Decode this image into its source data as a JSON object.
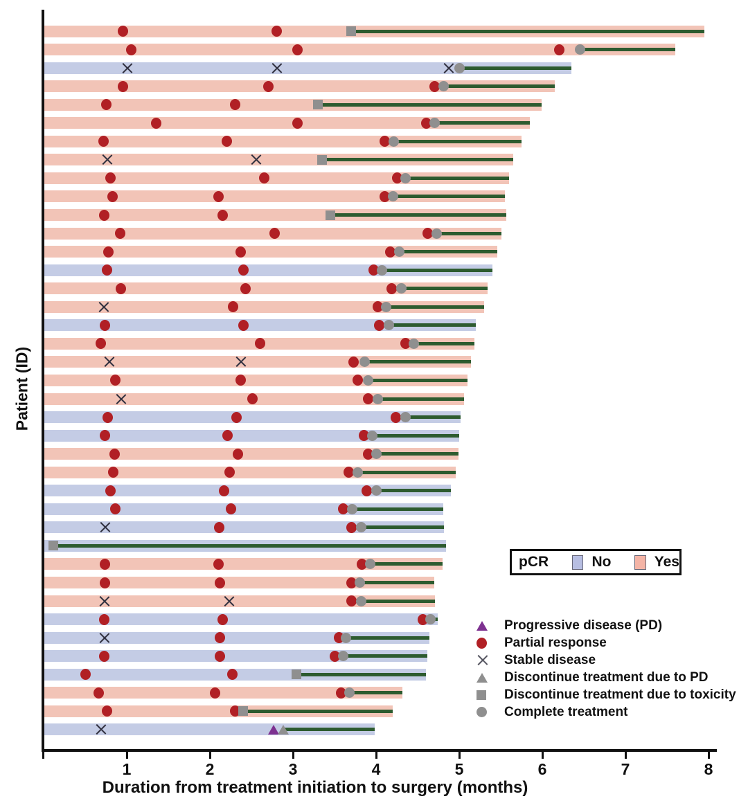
{
  "chart_data": {
    "type": "swimmer",
    "title": "",
    "xlabel": "Duration from treatment initiation to surgery (months)",
    "ylabel": "Patient (ID)",
    "xlim": [
      0,
      8.1
    ],
    "x_ticks": [
      "1",
      "2",
      "3",
      "4",
      "5",
      "6",
      "7",
      "8"
    ],
    "grid": false,
    "pcr_legend": {
      "title": "pCR",
      "no_label": "No",
      "yes_label": "Yes"
    },
    "marker_legend": [
      {
        "type": "pd",
        "label": "Progressive disease (PD)"
      },
      {
        "type": "pr",
        "label": "Partial response"
      },
      {
        "type": "sd",
        "label": "Stable disease"
      },
      {
        "type": "dpd",
        "label": "Discontinue treatment due to PD"
      },
      {
        "type": "tox",
        "label": "Discontinue treatment due to toxicity"
      },
      {
        "type": "comp",
        "label": "Complete treatment"
      }
    ],
    "colors": {
      "pcr_yes_bar": "#f2c4b7",
      "pcr_no_bar": "#c4cce5",
      "pcr_yes_swatch": "#f4b4a6",
      "pcr_no_swatch": "#b7bee2",
      "treatment_line": "#2d5b2f",
      "partial_response": "#b12025",
      "complete_gray": "#8f8f8f",
      "progressive_purple": "#7d3190",
      "axis": "#111111"
    },
    "patients": [
      {
        "pcr": "Yes",
        "bar_end": 7.95,
        "line_start": 3.7,
        "markers": [
          {
            "t": "pr",
            "x": 0.95
          },
          {
            "t": "pr",
            "x": 2.8
          },
          {
            "t": "tox",
            "x": 3.7
          }
        ]
      },
      {
        "pcr": "Yes",
        "bar_end": 7.6,
        "line_start": 6.45,
        "markers": [
          {
            "t": "pr",
            "x": 1.05
          },
          {
            "t": "pr",
            "x": 3.05
          },
          {
            "t": "pr",
            "x": 6.2
          },
          {
            "t": "comp",
            "x": 6.45
          }
        ]
      },
      {
        "pcr": "No",
        "bar_end": 6.35,
        "line_start": 5.0,
        "markers": [
          {
            "t": "sd",
            "x": 1.0
          },
          {
            "t": "sd",
            "x": 2.8
          },
          {
            "t": "sd",
            "x": 4.87
          },
          {
            "t": "comp",
            "x": 5.0
          }
        ]
      },
      {
        "pcr": "Yes",
        "bar_end": 6.15,
        "line_start": 4.81,
        "markers": [
          {
            "t": "pr",
            "x": 0.95
          },
          {
            "t": "pr",
            "x": 2.7
          },
          {
            "t": "pr",
            "x": 4.7
          },
          {
            "t": "comp",
            "x": 4.81
          }
        ]
      },
      {
        "pcr": "Yes",
        "bar_end": 5.99,
        "line_start": 3.3,
        "markers": [
          {
            "t": "pr",
            "x": 0.75
          },
          {
            "t": "pr",
            "x": 2.3
          },
          {
            "t": "tox",
            "x": 3.3
          }
        ]
      },
      {
        "pcr": "Yes",
        "bar_end": 5.85,
        "line_start": 4.7,
        "markers": [
          {
            "t": "pr",
            "x": 1.35
          },
          {
            "t": "pr",
            "x": 3.05
          },
          {
            "t": "pr",
            "x": 4.6
          },
          {
            "t": "comp",
            "x": 4.7
          }
        ]
      },
      {
        "pcr": "Yes",
        "bar_end": 5.75,
        "line_start": 4.21,
        "markers": [
          {
            "t": "pr",
            "x": 0.72
          },
          {
            "t": "pr",
            "x": 2.2
          },
          {
            "t": "pr",
            "x": 4.1
          },
          {
            "t": "comp",
            "x": 4.21
          }
        ]
      },
      {
        "pcr": "Yes",
        "bar_end": 5.65,
        "line_start": 3.35,
        "markers": [
          {
            "t": "sd",
            "x": 0.76
          },
          {
            "t": "sd",
            "x": 2.55
          },
          {
            "t": "tox",
            "x": 3.35
          }
        ]
      },
      {
        "pcr": "Yes",
        "bar_end": 5.6,
        "line_start": 4.35,
        "markers": [
          {
            "t": "pr",
            "x": 0.8
          },
          {
            "t": "pr",
            "x": 2.65
          },
          {
            "t": "pr",
            "x": 4.25
          },
          {
            "t": "comp",
            "x": 4.35
          }
        ]
      },
      {
        "pcr": "Yes",
        "bar_end": 5.55,
        "line_start": 4.2,
        "markers": [
          {
            "t": "pr",
            "x": 0.83
          },
          {
            "t": "pr",
            "x": 2.1
          },
          {
            "t": "pr",
            "x": 4.1
          },
          {
            "t": "comp",
            "x": 4.2
          }
        ]
      },
      {
        "pcr": "Yes",
        "bar_end": 5.57,
        "line_start": 3.45,
        "markers": [
          {
            "t": "pr",
            "x": 0.73
          },
          {
            "t": "pr",
            "x": 2.15
          },
          {
            "t": "tox",
            "x": 3.45
          }
        ]
      },
      {
        "pcr": "Yes",
        "bar_end": 5.51,
        "line_start": 4.73,
        "markers": [
          {
            "t": "pr",
            "x": 0.92
          },
          {
            "t": "pr",
            "x": 2.78
          },
          {
            "t": "pr",
            "x": 4.62
          },
          {
            "t": "comp",
            "x": 4.73
          }
        ]
      },
      {
        "pcr": "Yes",
        "bar_end": 5.46,
        "line_start": 4.28,
        "markers": [
          {
            "t": "pr",
            "x": 0.78
          },
          {
            "t": "pr",
            "x": 2.37
          },
          {
            "t": "pr",
            "x": 4.17
          },
          {
            "t": "comp",
            "x": 4.28
          }
        ]
      },
      {
        "pcr": "No",
        "bar_end": 5.4,
        "line_start": 4.07,
        "markers": [
          {
            "t": "pr",
            "x": 0.76
          },
          {
            "t": "pr",
            "x": 2.4
          },
          {
            "t": "pr",
            "x": 3.97
          },
          {
            "t": "comp",
            "x": 4.07
          }
        ]
      },
      {
        "pcr": "Yes",
        "bar_end": 5.34,
        "line_start": 4.3,
        "markers": [
          {
            "t": "pr",
            "x": 0.93
          },
          {
            "t": "pr",
            "x": 2.43
          },
          {
            "t": "pr",
            "x": 4.19
          },
          {
            "t": "comp",
            "x": 4.3
          }
        ]
      },
      {
        "pcr": "Yes",
        "bar_end": 5.3,
        "line_start": 4.12,
        "markers": [
          {
            "t": "sd",
            "x": 0.72
          },
          {
            "t": "pr",
            "x": 2.28
          },
          {
            "t": "pr",
            "x": 4.02
          },
          {
            "t": "comp",
            "x": 4.12
          }
        ]
      },
      {
        "pcr": "No",
        "bar_end": 5.2,
        "line_start": 4.15,
        "markers": [
          {
            "t": "pr",
            "x": 0.74
          },
          {
            "t": "pr",
            "x": 2.4
          },
          {
            "t": "pr",
            "x": 4.04
          },
          {
            "t": "comp",
            "x": 4.15
          }
        ]
      },
      {
        "pcr": "Yes",
        "bar_end": 5.18,
        "line_start": 4.45,
        "markers": [
          {
            "t": "pr",
            "x": 0.69
          },
          {
            "t": "pr",
            "x": 2.6
          },
          {
            "t": "pr",
            "x": 4.35
          },
          {
            "t": "comp",
            "x": 4.45
          }
        ]
      },
      {
        "pcr": "Yes",
        "bar_end": 5.14,
        "line_start": 3.86,
        "markers": [
          {
            "t": "sd",
            "x": 0.79
          },
          {
            "t": "sd",
            "x": 2.37
          },
          {
            "t": "pr",
            "x": 3.73
          },
          {
            "t": "comp",
            "x": 3.86
          }
        ]
      },
      {
        "pcr": "Yes",
        "bar_end": 5.1,
        "line_start": 3.9,
        "markers": [
          {
            "t": "pr",
            "x": 0.86
          },
          {
            "t": "pr",
            "x": 2.37
          },
          {
            "t": "pr",
            "x": 3.78
          },
          {
            "t": "comp",
            "x": 3.9
          }
        ]
      },
      {
        "pcr": "Yes",
        "bar_end": 5.06,
        "line_start": 4.02,
        "markers": [
          {
            "t": "sd",
            "x": 0.93
          },
          {
            "t": "pr",
            "x": 2.51
          },
          {
            "t": "pr",
            "x": 3.9
          },
          {
            "t": "comp",
            "x": 4.02
          }
        ]
      },
      {
        "pcr": "No",
        "bar_end": 5.02,
        "line_start": 4.35,
        "markers": [
          {
            "t": "pr",
            "x": 0.77
          },
          {
            "t": "pr",
            "x": 2.32
          },
          {
            "t": "pr",
            "x": 4.24
          },
          {
            "t": "comp",
            "x": 4.35
          }
        ]
      },
      {
        "pcr": "No",
        "bar_end": 5.0,
        "line_start": 3.95,
        "markers": [
          {
            "t": "pr",
            "x": 0.74
          },
          {
            "t": "pr",
            "x": 2.21
          },
          {
            "t": "pr",
            "x": 3.85
          },
          {
            "t": "comp",
            "x": 3.95
          }
        ]
      },
      {
        "pcr": "Yes",
        "bar_end": 4.99,
        "line_start": 4.0,
        "markers": [
          {
            "t": "pr",
            "x": 0.85
          },
          {
            "t": "pr",
            "x": 2.34
          },
          {
            "t": "pr",
            "x": 3.9
          },
          {
            "t": "comp",
            "x": 4.0
          }
        ]
      },
      {
        "pcr": "Yes",
        "bar_end": 4.96,
        "line_start": 3.78,
        "markers": [
          {
            "t": "pr",
            "x": 0.84
          },
          {
            "t": "pr",
            "x": 2.24
          },
          {
            "t": "pr",
            "x": 3.67
          },
          {
            "t": "comp",
            "x": 3.78
          }
        ]
      },
      {
        "pcr": "No",
        "bar_end": 4.9,
        "line_start": 4.0,
        "markers": [
          {
            "t": "pr",
            "x": 0.8
          },
          {
            "t": "pr",
            "x": 2.17
          },
          {
            "t": "pr",
            "x": 3.89
          },
          {
            "t": "comp",
            "x": 4.0
          }
        ]
      },
      {
        "pcr": "No",
        "bar_end": 4.81,
        "line_start": 3.71,
        "markers": [
          {
            "t": "pr",
            "x": 0.86
          },
          {
            "t": "pr",
            "x": 2.25
          },
          {
            "t": "pr",
            "x": 3.6
          },
          {
            "t": "comp",
            "x": 3.71
          }
        ]
      },
      {
        "pcr": "No",
        "bar_end": 4.82,
        "line_start": 3.82,
        "markers": [
          {
            "t": "sd",
            "x": 0.74
          },
          {
            "t": "pr",
            "x": 2.11
          },
          {
            "t": "pr",
            "x": 3.7
          },
          {
            "t": "comp",
            "x": 3.82
          }
        ]
      },
      {
        "pcr": "No",
        "bar_end": 4.84,
        "line_start": 0.12,
        "markers": [
          {
            "t": "tox",
            "x": 0.12
          }
        ]
      },
      {
        "pcr": "Yes",
        "bar_end": 4.8,
        "line_start": 3.93,
        "markers": [
          {
            "t": "pr",
            "x": 0.74
          },
          {
            "t": "pr",
            "x": 2.1
          },
          {
            "t": "pr",
            "x": 3.83
          },
          {
            "t": "comp",
            "x": 3.93
          }
        ]
      },
      {
        "pcr": "Yes",
        "bar_end": 4.7,
        "line_start": 3.8,
        "markers": [
          {
            "t": "pr",
            "x": 0.74
          },
          {
            "t": "pr",
            "x": 2.12
          },
          {
            "t": "pr",
            "x": 3.7
          },
          {
            "t": "comp",
            "x": 3.8
          }
        ]
      },
      {
        "pcr": "Yes",
        "bar_end": 4.71,
        "line_start": 3.82,
        "markers": [
          {
            "t": "sd",
            "x": 0.73
          },
          {
            "t": "sd",
            "x": 2.23
          },
          {
            "t": "pr",
            "x": 3.7
          },
          {
            "t": "comp",
            "x": 3.82
          }
        ]
      },
      {
        "pcr": "No",
        "bar_end": 4.74,
        "line_start": 4.65,
        "markers": [
          {
            "t": "pr",
            "x": 0.73
          },
          {
            "t": "pr",
            "x": 2.15
          },
          {
            "t": "pr",
            "x": 4.56
          },
          {
            "t": "comp",
            "x": 4.65
          }
        ]
      },
      {
        "pcr": "No",
        "bar_end": 4.64,
        "line_start": 3.64,
        "markers": [
          {
            "t": "sd",
            "x": 0.73
          },
          {
            "t": "pr",
            "x": 2.12
          },
          {
            "t": "pr",
            "x": 3.55
          },
          {
            "t": "comp",
            "x": 3.64
          }
        ]
      },
      {
        "pcr": "No",
        "bar_end": 4.62,
        "line_start": 3.6,
        "markers": [
          {
            "t": "pr",
            "x": 0.73
          },
          {
            "t": "pr",
            "x": 2.12
          },
          {
            "t": "pr",
            "x": 3.5
          },
          {
            "t": "comp",
            "x": 3.6
          }
        ]
      },
      {
        "pcr": "No",
        "bar_end": 4.6,
        "line_start": 3.04,
        "markers": [
          {
            "t": "pr",
            "x": 0.5
          },
          {
            "t": "pr",
            "x": 2.27
          },
          {
            "t": "tox",
            "x": 3.04
          }
        ]
      },
      {
        "pcr": "Yes",
        "bar_end": 4.32,
        "line_start": 3.68,
        "markers": [
          {
            "t": "pr",
            "x": 0.66
          },
          {
            "t": "pr",
            "x": 2.06
          },
          {
            "t": "pr",
            "x": 3.58
          },
          {
            "t": "comp",
            "x": 3.68
          }
        ]
      },
      {
        "pcr": "Yes",
        "bar_end": 4.2,
        "line_start": 2.4,
        "markers": [
          {
            "t": "pr",
            "x": 0.76
          },
          {
            "t": "pr",
            "x": 2.3
          },
          {
            "t": "tox",
            "x": 2.4
          }
        ]
      },
      {
        "pcr": "No",
        "bar_end": 3.98,
        "line_start": 2.88,
        "markers": [
          {
            "t": "sd",
            "x": 0.69
          },
          {
            "t": "pd",
            "x": 2.77
          },
          {
            "t": "dpd",
            "x": 2.88
          }
        ]
      }
    ]
  }
}
